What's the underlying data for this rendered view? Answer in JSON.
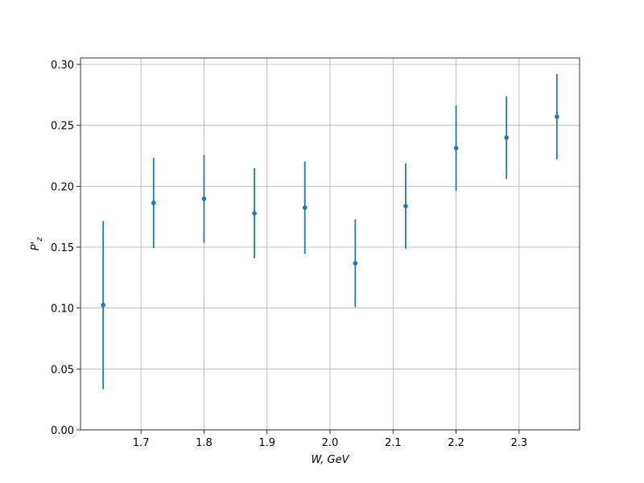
{
  "chart_data": {
    "type": "errorbar",
    "xlabel": "W, GeV",
    "ylabel": [
      "P'",
      "z"
    ],
    "x": [
      1.64,
      1.72,
      1.8,
      1.88,
      1.96,
      2.04,
      2.12,
      2.2,
      2.28,
      2.36
    ],
    "series": [
      {
        "color": "#1f77b4",
        "values": [
          0.1024,
          0.1863,
          0.1897,
          0.1778,
          0.1824,
          0.1368,
          0.1837,
          0.2313,
          0.2399,
          0.2571
        ],
        "errors": [
          0.069,
          0.037,
          0.036,
          0.037,
          0.038,
          0.036,
          0.035,
          0.035,
          0.034,
          0.035
        ]
      }
    ],
    "xlim": [
      1.604,
      2.396
    ],
    "ylim": [
      0,
      0.3053
    ],
    "xticks": [
      1.7,
      1.8,
      1.9,
      {
        "value": 2,
        "label": "2.0"
      },
      2.1,
      2.2,
      2.3
    ],
    "yticks": [
      {
        "value": 0,
        "label": "0.00"
      },
      {
        "value": 0.05,
        "label": "0.05"
      },
      {
        "value": 0.1,
        "label": "0.10"
      },
      {
        "value": 0.15,
        "label": "0.15"
      },
      {
        "value": 0.2,
        "label": "0.20"
      },
      {
        "value": 0.25,
        "label": "0.25"
      },
      {
        "value": 0.3,
        "label": "0.30"
      }
    ],
    "grid": true
  }
}
